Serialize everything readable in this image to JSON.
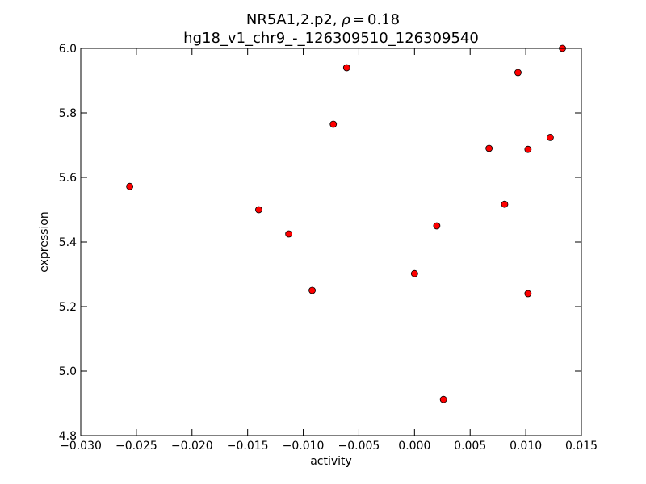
{
  "chart_data": {
    "type": "scatter",
    "title": "NR5A1,2.p2, ",
    "title_rho_symbol": "ρ",
    "title_rho_equals": "=",
    "title_rho_value": "0.18",
    "subtitle": "hg18_v1_chr9_-_126309510_126309540",
    "xlabel": "activity",
    "ylabel": "expression",
    "xlim": [
      -0.03,
      0.015
    ],
    "ylim": [
      4.8,
      6.0
    ],
    "x_ticks": [
      -0.03,
      -0.025,
      -0.02,
      -0.015,
      -0.01,
      -0.005,
      0.0,
      0.005,
      0.01,
      0.015
    ],
    "x_tick_labels": [
      "−0.030",
      "−0.025",
      "−0.020",
      "−0.015",
      "−0.010",
      "−0.005",
      "0.000",
      "0.005",
      "0.010",
      "0.015"
    ],
    "y_ticks": [
      4.8,
      5.0,
      5.2,
      5.4,
      5.6,
      5.8,
      6.0
    ],
    "y_tick_labels": [
      "4.8",
      "5.0",
      "5.2",
      "5.4",
      "5.6",
      "5.8",
      "6.0"
    ],
    "grid": false,
    "marker_color": "#ff0000",
    "marker_edge_color": "#000000",
    "points": [
      {
        "x": -0.0256,
        "y": 5.572
      },
      {
        "x": -0.014,
        "y": 5.5
      },
      {
        "x": -0.0113,
        "y": 5.425
      },
      {
        "x": -0.0092,
        "y": 5.25
      },
      {
        "x": -0.0073,
        "y": 5.765
      },
      {
        "x": -0.0061,
        "y": 5.94
      },
      {
        "x": 0.0,
        "y": 5.302
      },
      {
        "x": 0.002,
        "y": 5.45
      },
      {
        "x": 0.0026,
        "y": 4.912
      },
      {
        "x": 0.0067,
        "y": 5.69
      },
      {
        "x": 0.0081,
        "y": 5.517
      },
      {
        "x": 0.0093,
        "y": 5.925
      },
      {
        "x": 0.0102,
        "y": 5.687
      },
      {
        "x": 0.0102,
        "y": 5.24
      },
      {
        "x": 0.0122,
        "y": 5.724
      },
      {
        "x": 0.0133,
        "y": 6.0
      }
    ]
  }
}
